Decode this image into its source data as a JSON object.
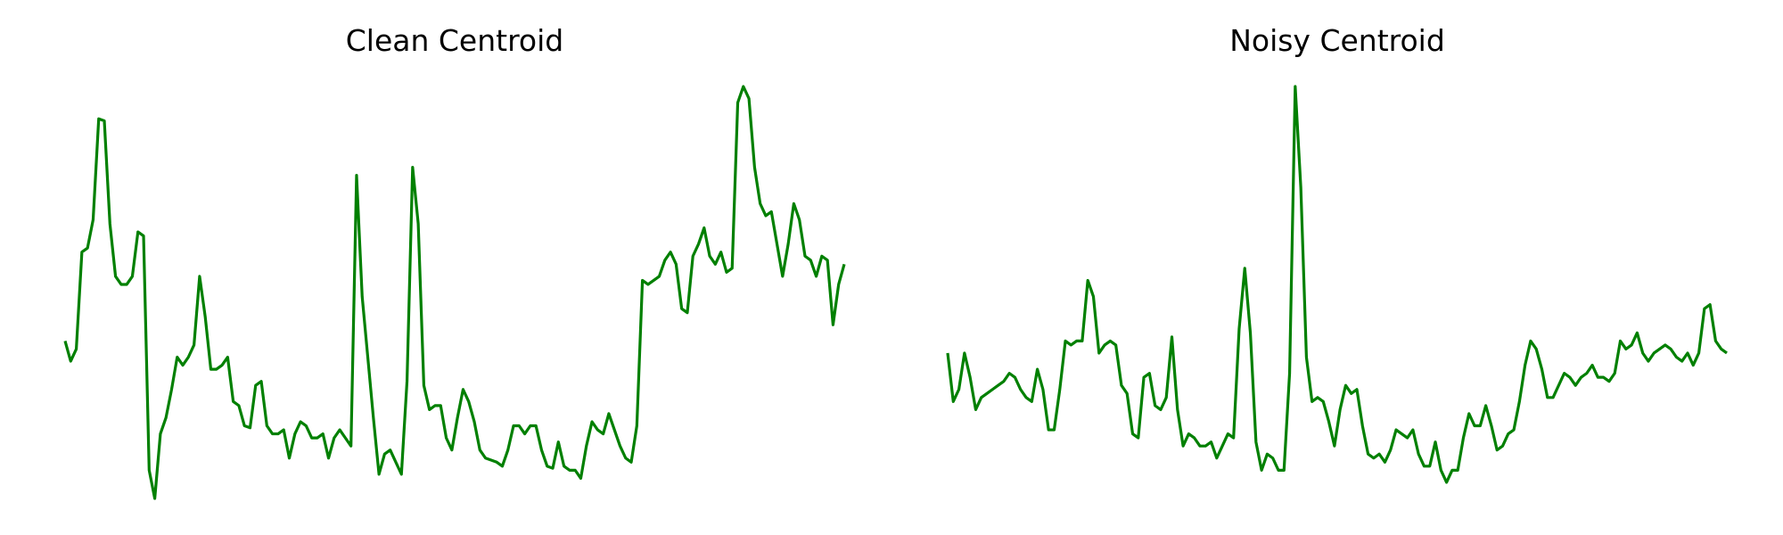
{
  "chart_data": [
    {
      "type": "line",
      "title": "Clean Centroid",
      "xlabel": "",
      "ylabel": "",
      "axis_visible": false,
      "grid": false,
      "color": "#008000",
      "x_range": [
        0,
        139
      ],
      "ylim": [
        0,
        1
      ],
      "values": [
        0.37,
        0.32,
        0.35,
        0.59,
        0.6,
        0.67,
        0.92,
        0.915,
        0.66,
        0.53,
        0.51,
        0.51,
        0.53,
        0.64,
        0.63,
        0.05,
        -0.02,
        0.14,
        0.18,
        0.25,
        0.33,
        0.31,
        0.33,
        0.36,
        0.53,
        0.43,
        0.3,
        0.3,
        0.31,
        0.33,
        0.22,
        0.21,
        0.16,
        0.155,
        0.26,
        0.27,
        0.16,
        0.14,
        0.14,
        0.15,
        0.08,
        0.14,
        0.17,
        0.16,
        0.13,
        0.13,
        0.14,
        0.08,
        0.13,
        0.15,
        0.13,
        0.11,
        0.78,
        0.48,
        0.33,
        0.18,
        0.04,
        0.09,
        0.1,
        0.07,
        0.04,
        0.27,
        0.8,
        0.66,
        0.26,
        0.2,
        0.21,
        0.21,
        0.13,
        0.1,
        0.18,
        0.25,
        0.22,
        0.17,
        0.1,
        0.08,
        0.075,
        0.07,
        0.06,
        0.1,
        0.16,
        0.16,
        0.14,
        0.16,
        0.16,
        0.1,
        0.06,
        0.055,
        0.12,
        0.06,
        0.05,
        0.05,
        0.03,
        0.11,
        0.17,
        0.15,
        0.14,
        0.19,
        0.15,
        0.11,
        0.08,
        0.07,
        0.16,
        0.52,
        0.51,
        0.52,
        0.53,
        0.57,
        0.59,
        0.56,
        0.45,
        0.44,
        0.58,
        0.61,
        0.65,
        0.58,
        0.56,
        0.59,
        0.54,
        0.55,
        0.96,
        1.0,
        0.97,
        0.8,
        0.71,
        0.68,
        0.69,
        0.61,
        0.53,
        0.61,
        0.71,
        0.67,
        0.58,
        0.57,
        0.53,
        0.58,
        0.57,
        0.41,
        0.51,
        0.56
      ]
    },
    {
      "type": "line",
      "title": "Noisy Centroid",
      "xlabel": "",
      "ylabel": "",
      "axis_visible": false,
      "grid": false,
      "color": "#008000",
      "x_range": [
        0,
        139
      ],
      "ylim": [
        0,
        1
      ],
      "values": [
        0.34,
        0.22,
        0.25,
        0.34,
        0.28,
        0.2,
        0.23,
        0.24,
        0.25,
        0.26,
        0.27,
        0.29,
        0.28,
        0.25,
        0.23,
        0.22,
        0.3,
        0.25,
        0.15,
        0.15,
        0.25,
        0.37,
        0.36,
        0.37,
        0.37,
        0.52,
        0.48,
        0.34,
        0.36,
        0.37,
        0.36,
        0.26,
        0.24,
        0.14,
        0.13,
        0.28,
        0.29,
        0.21,
        0.2,
        0.23,
        0.38,
        0.2,
        0.11,
        0.14,
        0.13,
        0.11,
        0.11,
        0.12,
        0.08,
        0.11,
        0.14,
        0.13,
        0.4,
        0.55,
        0.39,
        0.12,
        0.05,
        0.09,
        0.08,
        0.05,
        0.05,
        0.29,
        1.0,
        0.75,
        0.33,
        0.22,
        0.23,
        0.22,
        0.17,
        0.11,
        0.2,
        0.26,
        0.24,
        0.25,
        0.16,
        0.09,
        0.08,
        0.09,
        0.07,
        0.1,
        0.15,
        0.14,
        0.13,
        0.15,
        0.09,
        0.06,
        0.06,
        0.12,
        0.05,
        0.02,
        0.05,
        0.05,
        0.13,
        0.19,
        0.16,
        0.16,
        0.21,
        0.16,
        0.1,
        0.11,
        0.14,
        0.15,
        0.22,
        0.31,
        0.37,
        0.35,
        0.3,
        0.23,
        0.23,
        0.26,
        0.29,
        0.28,
        0.26,
        0.28,
        0.29,
        0.31,
        0.28,
        0.28,
        0.27,
        0.29,
        0.37,
        0.35,
        0.36,
        0.39,
        0.34,
        0.32,
        0.34,
        0.35,
        0.36,
        0.35,
        0.33,
        0.32,
        0.34,
        0.31,
        0.34,
        0.45,
        0.46,
        0.37,
        0.35,
        0.34
      ]
    }
  ]
}
